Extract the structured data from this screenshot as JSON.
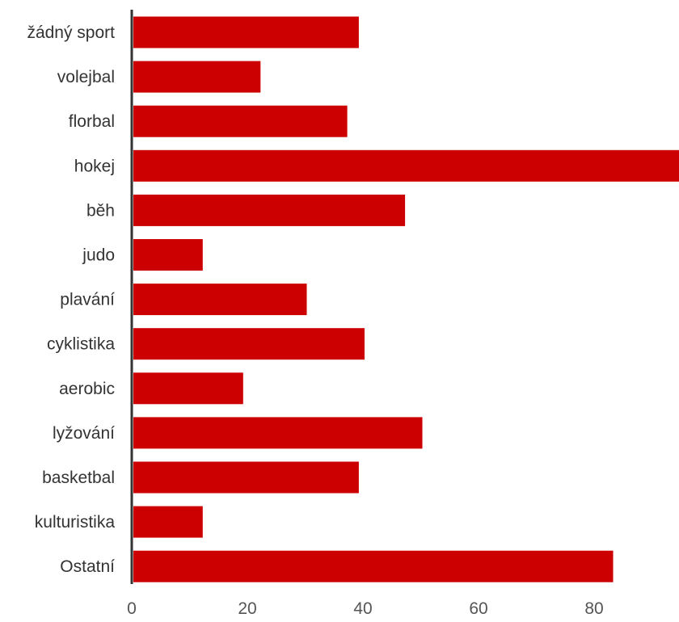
{
  "chart_data": {
    "type": "bar",
    "orientation": "horizontal",
    "title": "",
    "xlabel": "",
    "ylabel": "",
    "categories": [
      "žádný sport",
      "volejbal",
      "florbal",
      "hokej",
      "běh",
      "judo",
      "plavání",
      "cyklistika",
      "aerobic",
      "lyžování",
      "basketbal",
      "kulturistika",
      "Ostatní"
    ],
    "values": [
      39,
      22,
      37,
      97,
      47,
      12,
      30,
      40,
      19,
      50,
      39,
      12,
      83
    ],
    "xlim": [
      0,
      95
    ],
    "xticks": [
      0,
      20,
      40,
      60,
      80
    ],
    "grid": false,
    "legend": "none",
    "bar_color": "#cc0000",
    "axis_color": "#333333"
  }
}
